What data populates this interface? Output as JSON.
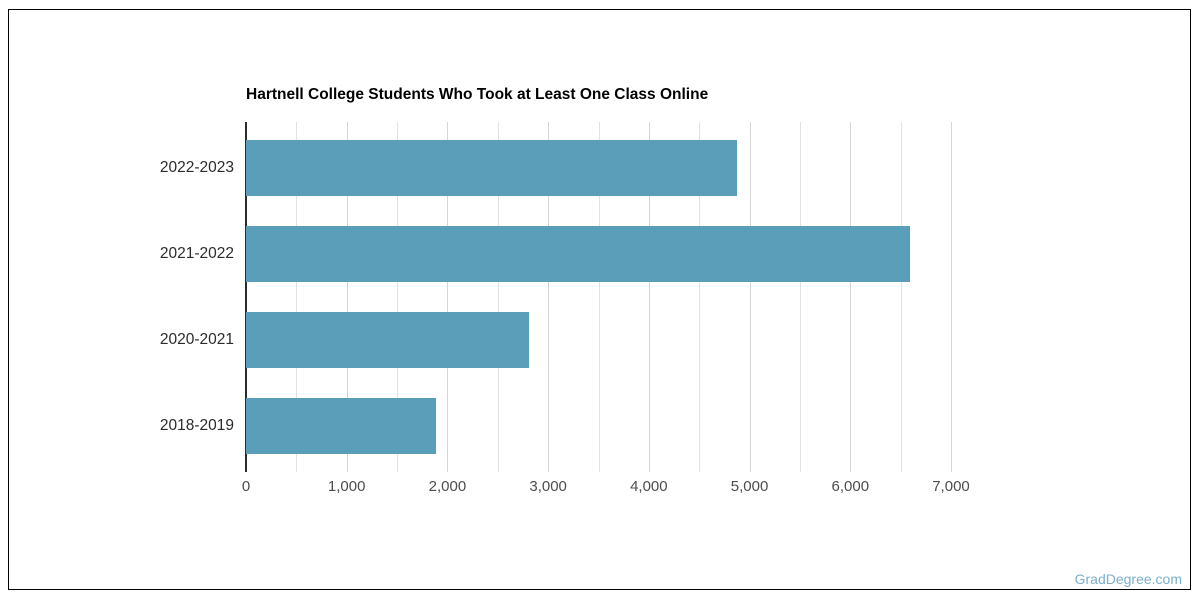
{
  "chart_data": {
    "type": "bar",
    "orientation": "horizontal",
    "title": "Hartnell College Students Who Took at Least One Class Online",
    "categories": [
      "2022-2023",
      "2021-2022",
      "2020-2021",
      "2018-2019"
    ],
    "values": [
      4880,
      6590,
      2810,
      1890
    ],
    "xlim": [
      0,
      7000
    ],
    "x_tick_labels": [
      "0",
      "1,000",
      "2,000",
      "3,000",
      "4,000",
      "5,000",
      "6,000",
      "7,000"
    ],
    "x_label_interval": 1000,
    "gridline_interval": 500,
    "grid": true,
    "legend": false,
    "bar_color": "#5A9EBA",
    "axis_line_color": "#2b2b2b",
    "gridline_minor_color": "#e2e2e2",
    "gridline_major_color": "#d6d6d6",
    "category_label_color": "#2b2b2b",
    "tick_label_color": "#4d4d4d",
    "title_color": "#000000"
  },
  "watermark": {
    "text": "GradDegree.com",
    "color": "#7BAFC9"
  }
}
